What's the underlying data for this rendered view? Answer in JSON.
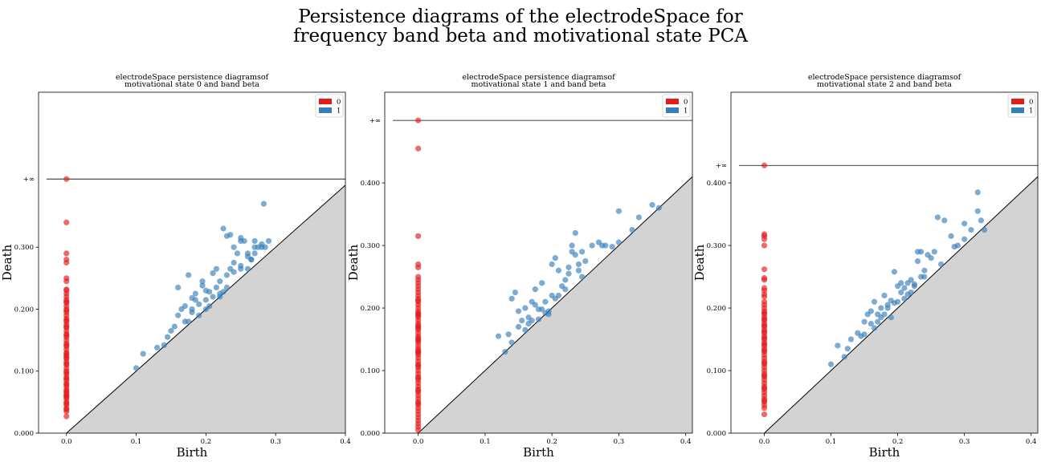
{
  "figure": {
    "title_line1": "Persistence diagrams of the electrodeSpace for",
    "title_line2": "frequency band beta and motivational state PCA"
  },
  "colors": {
    "dim0": "#e41a1c",
    "dim1": "#377eb8",
    "diagonal_fill": "#d3d3d3"
  },
  "chart_data": [
    {
      "type": "scatter",
      "title_line1": "electrodeSpace persistence diagramsof",
      "title_line2": "motivational state 0 and band  beta",
      "xlabel": "Birth",
      "ylabel": "Death",
      "xlim": [
        -0.04,
        0.4
      ],
      "ylim": [
        0.0,
        0.55
      ],
      "xticks": [
        "0.0",
        "0.1",
        "0.2",
        "0.3",
        "0.4"
      ],
      "yticks": [
        "0.000",
        "0.100",
        "0.200",
        "0.300"
      ],
      "inf_label": "+∞",
      "inf_value": 0.41,
      "legend": {
        "placement": "top-right",
        "entries": [
          "0",
          "1"
        ]
      },
      "series": [
        {
          "name": "0",
          "x": [
            0,
            0,
            0,
            0,
            0,
            0,
            0,
            0,
            0,
            0,
            0,
            0,
            0,
            0,
            0,
            0,
            0,
            0,
            0,
            0,
            0,
            0,
            0,
            0,
            0,
            0,
            0,
            0,
            0,
            0,
            0,
            0,
            0,
            0,
            0,
            0,
            0,
            0,
            0,
            0,
            0,
            0,
            0,
            0,
            0,
            0,
            0,
            0,
            0,
            0,
            0,
            0,
            0,
            0,
            0,
            0,
            0,
            0,
            0,
            0,
            0,
            0,
            0,
            0,
            0,
            0
          ],
          "y": [
            0.41,
            0.34,
            0.29,
            0.28,
            0.275,
            0.25,
            0.245,
            0.23,
            0.225,
            0.22,
            0.215,
            0.21,
            0.205,
            0.2,
            0.195,
            0.19,
            0.185,
            0.18,
            0.175,
            0.17,
            0.165,
            0.16,
            0.155,
            0.15,
            0.145,
            0.14,
            0.135,
            0.13,
            0.125,
            0.12,
            0.115,
            0.11,
            0.105,
            0.1,
            0.095,
            0.09,
            0.085,
            0.08,
            0.075,
            0.07,
            0.065,
            0.06,
            0.055,
            0.05,
            0.045,
            0.04,
            0.035,
            0.027,
            0.232,
            0.212,
            0.198,
            0.172,
            0.158,
            0.142,
            0.128,
            0.112,
            0.098,
            0.088,
            0.078,
            0.068,
            0.058,
            0.048,
            0.038,
            0.182,
            0.122,
            0.062
          ]
        },
        {
          "name": "1",
          "x": [
            0.1,
            0.11,
            0.13,
            0.14,
            0.15,
            0.155,
            0.16,
            0.165,
            0.17,
            0.17,
            0.175,
            0.18,
            0.18,
            0.185,
            0.19,
            0.19,
            0.195,
            0.2,
            0.2,
            0.205,
            0.21,
            0.21,
            0.215,
            0.22,
            0.22,
            0.225,
            0.23,
            0.23,
            0.235,
            0.24,
            0.24,
            0.245,
            0.25,
            0.25,
            0.255,
            0.26,
            0.26,
            0.265,
            0.27,
            0.27,
            0.275,
            0.28,
            0.285,
            0.29,
            0.145,
            0.16,
            0.175,
            0.18,
            0.185,
            0.195,
            0.205,
            0.215,
            0.225,
            0.235,
            0.24,
            0.25,
            0.26,
            0.27,
            0.28,
            0.2,
            0.22,
            0.23,
            0.25,
            0.265,
            0.283
          ],
          "y": [
            0.105,
            0.128,
            0.138,
            0.142,
            0.165,
            0.172,
            0.19,
            0.2,
            0.205,
            0.18,
            0.18,
            0.218,
            0.2,
            0.215,
            0.208,
            0.19,
            0.238,
            0.215,
            0.23,
            0.228,
            0.258,
            0.22,
            0.265,
            0.245,
            0.22,
            0.33,
            0.318,
            0.255,
            0.32,
            0.275,
            0.26,
            0.29,
            0.27,
            0.31,
            0.31,
            0.265,
            0.285,
            0.28,
            0.29,
            0.31,
            0.3,
            0.305,
            0.3,
            0.31,
            0.155,
            0.235,
            0.255,
            0.195,
            0.225,
            0.245,
            0.205,
            0.235,
            0.228,
            0.265,
            0.3,
            0.315,
            0.29,
            0.3,
            0.3,
            0.2,
            0.225,
            0.235,
            0.265,
            0.28,
            0.37
          ]
        }
      ]
    },
    {
      "type": "scatter",
      "title_line1": "electrodeSpace persistence diagramsof",
      "title_line2": "motivational state 1 and band  beta",
      "xlabel": "Birth",
      "ylabel": "Death",
      "xlim": [
        -0.05,
        0.41
      ],
      "ylim": [
        0.0,
        0.545
      ],
      "xticks": [
        "0.0",
        "0.1",
        "0.2",
        "0.3",
        "0.4"
      ],
      "yticks": [
        "0.000",
        "0.100",
        "0.200",
        "0.300",
        "0.400"
      ],
      "inf_label": "+∞",
      "inf_value": 0.5,
      "legend": {
        "placement": "top-right",
        "entries": [
          "0",
          "1"
        ]
      },
      "series": [
        {
          "name": "0",
          "x": [
            0,
            0,
            0,
            0,
            0,
            0,
            0,
            0,
            0,
            0,
            0,
            0,
            0,
            0,
            0,
            0,
            0,
            0,
            0,
            0,
            0,
            0,
            0,
            0,
            0,
            0,
            0,
            0,
            0,
            0,
            0,
            0,
            0,
            0,
            0,
            0,
            0,
            0,
            0,
            0,
            0,
            0,
            0,
            0,
            0,
            0,
            0,
            0,
            0,
            0,
            0,
            0,
            0,
            0,
            0,
            0,
            0,
            0,
            0,
            0,
            0,
            0,
            0,
            0,
            0,
            0,
            0,
            0
          ],
          "y": [
            0.5,
            0.455,
            0.315,
            0.27,
            0.265,
            0.25,
            0.245,
            0.24,
            0.235,
            0.23,
            0.225,
            0.22,
            0.215,
            0.21,
            0.205,
            0.2,
            0.195,
            0.19,
            0.185,
            0.18,
            0.175,
            0.17,
            0.165,
            0.16,
            0.155,
            0.15,
            0.145,
            0.14,
            0.135,
            0.13,
            0.125,
            0.12,
            0.115,
            0.11,
            0.105,
            0.1,
            0.095,
            0.09,
            0.085,
            0.08,
            0.075,
            0.07,
            0.065,
            0.06,
            0.055,
            0.05,
            0.045,
            0.04,
            0.035,
            0.03,
            0.02,
            0.01,
            0.005,
            0.015,
            0.025,
            0.188,
            0.168,
            0.148,
            0.128,
            0.108,
            0.088,
            0.068,
            0.048,
            0.212,
            0.192,
            0.172,
            0.152,
            0.132
          ]
        },
        {
          "name": "1",
          "x": [
            0.12,
            0.13,
            0.135,
            0.14,
            0.145,
            0.15,
            0.15,
            0.155,
            0.16,
            0.16,
            0.165,
            0.17,
            0.17,
            0.175,
            0.18,
            0.18,
            0.185,
            0.19,
            0.19,
            0.195,
            0.2,
            0.2,
            0.205,
            0.21,
            0.21,
            0.215,
            0.22,
            0.22,
            0.225,
            0.23,
            0.23,
            0.235,
            0.24,
            0.24,
            0.245,
            0.25,
            0.26,
            0.27,
            0.28,
            0.29,
            0.3,
            0.32,
            0.33,
            0.35,
            0.36,
            0.14,
            0.165,
            0.175,
            0.185,
            0.195,
            0.205,
            0.225,
            0.235,
            0.245,
            0.275,
            0.3
          ],
          "y": [
            0.155,
            0.13,
            0.158,
            0.145,
            0.225,
            0.195,
            0.17,
            0.18,
            0.2,
            0.165,
            0.185,
            0.21,
            0.18,
            0.205,
            0.198,
            0.182,
            0.24,
            0.21,
            0.192,
            0.195,
            0.27,
            0.22,
            0.28,
            0.26,
            0.22,
            0.235,
            0.245,
            0.23,
            0.265,
            0.29,
            0.3,
            0.285,
            0.27,
            0.26,
            0.29,
            0.275,
            0.3,
            0.305,
            0.3,
            0.298,
            0.305,
            0.325,
            0.345,
            0.365,
            0.36,
            0.215,
            0.175,
            0.23,
            0.198,
            0.19,
            0.215,
            0.255,
            0.32,
            0.25,
            0.3,
            0.355
          ]
        }
      ]
    },
    {
      "type": "scatter",
      "title_line1": "electrodeSpace persistence diagramsof",
      "title_line2": "motivational state 2 and band  beta",
      "xlabel": "Birth",
      "ylabel": "Death",
      "xlim": [
        -0.05,
        0.41
      ],
      "ylim": [
        0.0,
        0.545
      ],
      "xticks": [
        "0.0",
        "0.1",
        "0.2",
        "0.3",
        "0.4"
      ],
      "yticks": [
        "0.000",
        "0.100",
        "0.200",
        "0.300",
        "0.400"
      ],
      "inf_label": "+∞",
      "inf_value": 0.428,
      "legend": {
        "placement": "top-right",
        "entries": [
          "0",
          "1"
        ]
      },
      "series": [
        {
          "name": "0",
          "x": [
            0,
            0,
            0,
            0,
            0,
            0,
            0,
            0,
            0,
            0,
            0,
            0,
            0,
            0,
            0,
            0,
            0,
            0,
            0,
            0,
            0,
            0,
            0,
            0,
            0,
            0,
            0,
            0,
            0,
            0,
            0,
            0,
            0,
            0,
            0,
            0,
            0,
            0,
            0,
            0,
            0,
            0,
            0,
            0,
            0,
            0,
            0,
            0,
            0,
            0,
            0,
            0,
            0,
            0,
            0,
            0,
            0,
            0,
            0
          ],
          "y": [
            0.428,
            0.318,
            0.315,
            0.31,
            0.3,
            0.262,
            0.248,
            0.245,
            0.232,
            0.228,
            0.222,
            0.218,
            0.21,
            0.205,
            0.2,
            0.195,
            0.19,
            0.185,
            0.18,
            0.175,
            0.17,
            0.165,
            0.16,
            0.155,
            0.15,
            0.145,
            0.14,
            0.135,
            0.13,
            0.125,
            0.12,
            0.115,
            0.11,
            0.105,
            0.1,
            0.095,
            0.09,
            0.085,
            0.08,
            0.075,
            0.07,
            0.065,
            0.06,
            0.055,
            0.05,
            0.045,
            0.04,
            0.03,
            0.192,
            0.172,
            0.152,
            0.132,
            0.112,
            0.092,
            0.072,
            0.052,
            0.182,
            0.162,
            0.142
          ]
        },
        {
          "name": "1",
          "x": [
            0.1,
            0.11,
            0.12,
            0.125,
            0.13,
            0.14,
            0.145,
            0.15,
            0.155,
            0.16,
            0.16,
            0.165,
            0.17,
            0.17,
            0.175,
            0.18,
            0.18,
            0.185,
            0.19,
            0.19,
            0.195,
            0.2,
            0.2,
            0.205,
            0.21,
            0.21,
            0.215,
            0.22,
            0.22,
            0.225,
            0.23,
            0.23,
            0.235,
            0.24,
            0.24,
            0.25,
            0.26,
            0.27,
            0.28,
            0.29,
            0.3,
            0.31,
            0.32,
            0.32,
            0.325,
            0.33,
            0.15,
            0.165,
            0.175,
            0.185,
            0.195,
            0.205,
            0.215,
            0.225,
            0.235,
            0.245,
            0.255,
            0.265,
            0.285,
            0.3
          ],
          "y": [
            0.11,
            0.14,
            0.122,
            0.135,
            0.15,
            0.16,
            0.155,
            0.178,
            0.19,
            0.195,
            0.175,
            0.21,
            0.19,
            0.178,
            0.2,
            0.22,
            0.19,
            0.2,
            0.212,
            0.185,
            0.258,
            0.235,
            0.21,
            0.24,
            0.232,
            0.215,
            0.24,
            0.245,
            0.225,
            0.235,
            0.275,
            0.29,
            0.29,
            0.25,
            0.26,
            0.28,
            0.345,
            0.34,
            0.315,
            0.3,
            0.31,
            0.325,
            0.385,
            0.355,
            0.34,
            0.325,
            0.158,
            0.168,
            0.185,
            0.205,
            0.208,
            0.225,
            0.222,
            0.238,
            0.25,
            0.285,
            0.29,
            0.27,
            0.298,
            0.335
          ]
        }
      ]
    }
  ]
}
